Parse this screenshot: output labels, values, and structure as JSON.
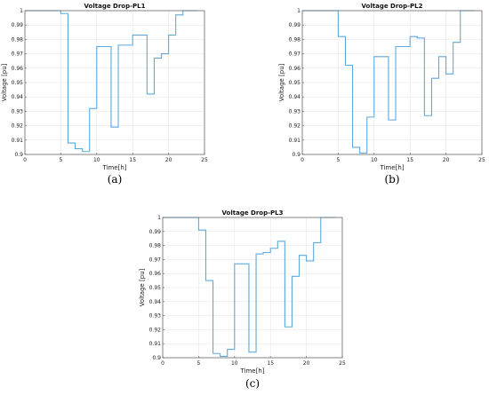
{
  "chart_data": [
    {
      "type": "line",
      "title": "Voltage Drop-PL1",
      "xlabel": "Time[h]",
      "ylabel": "Voltage [pu]",
      "panel_label": "(a)",
      "xlim": [
        0,
        25
      ],
      "ylim": [
        0.9,
        1.0
      ],
      "xticks": [
        "0",
        "5",
        "10",
        "15",
        "20",
        "25"
      ],
      "yticks": [
        "0.9",
        "0.91",
        "0.92",
        "0.93",
        "0.94",
        "0.95",
        "0.96",
        "0.97",
        "0.98",
        "0.99",
        "1"
      ],
      "grid": true,
      "step": true,
      "series": [
        {
          "x": [
            0,
            5,
            6,
            7,
            8,
            9,
            10,
            11,
            12,
            13,
            14,
            15,
            16,
            17,
            18,
            19,
            20,
            21,
            22,
            24
          ],
          "values": [
            1.0,
            0.998,
            0.908,
            0.904,
            0.902,
            0.932,
            0.975,
            0.975,
            0.919,
            0.976,
            0.976,
            0.983,
            0.983,
            0.942,
            0.967,
            0.97,
            0.983,
            0.997,
            1.0,
            1.0
          ]
        }
      ]
    },
    {
      "type": "line",
      "title": "Voltage Drop-PL2",
      "xlabel": "Time[h]",
      "ylabel": "Voltage [pu]",
      "panel_label": "(b)",
      "xlim": [
        0,
        25
      ],
      "ylim": [
        0.9,
        1.0
      ],
      "xticks": [
        "0",
        "5",
        "10",
        "15",
        "20",
        "25"
      ],
      "yticks": [
        "0.9",
        "0.91",
        "0.92",
        "0.93",
        "0.94",
        "0.95",
        "0.96",
        "0.97",
        "0.98",
        "0.99",
        "1"
      ],
      "grid": true,
      "step": true,
      "series": [
        {
          "x": [
            0,
            5,
            6,
            7,
            8,
            9,
            10,
            11,
            12,
            13,
            14,
            15,
            16,
            17,
            18,
            19,
            20,
            21,
            22,
            24
          ],
          "values": [
            1.0,
            0.982,
            0.962,
            0.905,
            0.901,
            0.926,
            0.968,
            0.968,
            0.924,
            0.975,
            0.975,
            0.982,
            0.981,
            0.927,
            0.953,
            0.968,
            0.956,
            0.978,
            1.0,
            1.0
          ]
        }
      ]
    },
    {
      "type": "line",
      "title": "Voltage Drop-PL3",
      "xlabel": "Time[h]",
      "ylabel": "Voltage [pu]",
      "panel_label": "(c)",
      "xlim": [
        0,
        25
      ],
      "ylim": [
        0.9,
        1.0
      ],
      "xticks": [
        "0",
        "5",
        "10",
        "15",
        "20",
        "25"
      ],
      "yticks": [
        "0.9",
        "0.91",
        "0.92",
        "0.93",
        "0.94",
        "0.95",
        "0.96",
        "0.97",
        "0.98",
        "0.99",
        "1"
      ],
      "grid": true,
      "step": true,
      "series": [
        {
          "x": [
            0,
            5,
            6,
            7,
            8,
            9,
            10,
            11,
            12,
            13,
            14,
            15,
            16,
            17,
            18,
            19,
            20,
            21,
            22,
            24
          ],
          "values": [
            1.0,
            0.991,
            0.955,
            0.903,
            0.901,
            0.906,
            0.967,
            0.967,
            0.904,
            0.974,
            0.975,
            0.978,
            0.983,
            0.922,
            0.958,
            0.973,
            0.969,
            0.982,
            1.0,
            1.0
          ]
        }
      ]
    }
  ]
}
